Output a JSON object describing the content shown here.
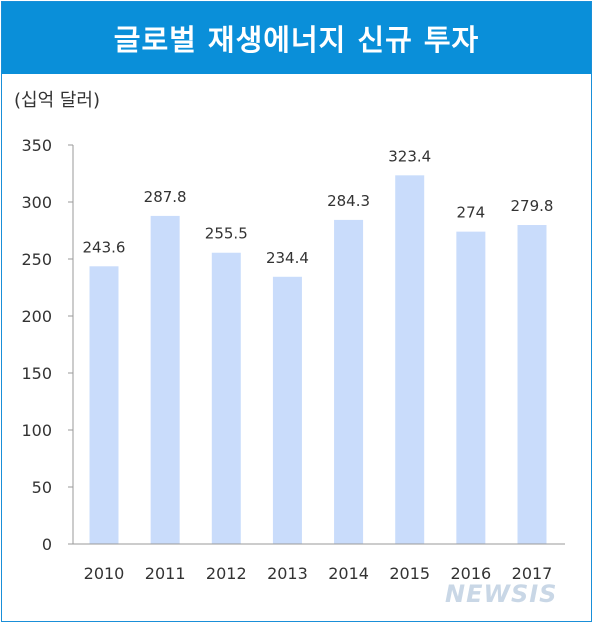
{
  "chart_data": {
    "type": "bar",
    "title": "글로벌 재생에너지 신규 투자",
    "unit_label": "(십억 달러)",
    "xlabel": "",
    "ylabel": "",
    "categories": [
      "2010",
      "2011",
      "2012",
      "2013",
      "2014",
      "2015",
      "2016",
      "2017"
    ],
    "values": [
      243.6,
      287.8,
      255.5,
      234.4,
      284.3,
      323.4,
      274,
      279.8
    ],
    "value_labels": [
      "243.6",
      "287.8",
      "255.5",
      "234.4",
      "284.3",
      "323.4",
      "274",
      "279.8"
    ],
    "ylim": [
      0,
      350
    ],
    "yticks": [
      0,
      50,
      100,
      150,
      200,
      250,
      300,
      350
    ],
    "grid": false,
    "legend": "none",
    "bar_color": "#c9dcfb"
  },
  "watermark": "NEWSIS"
}
